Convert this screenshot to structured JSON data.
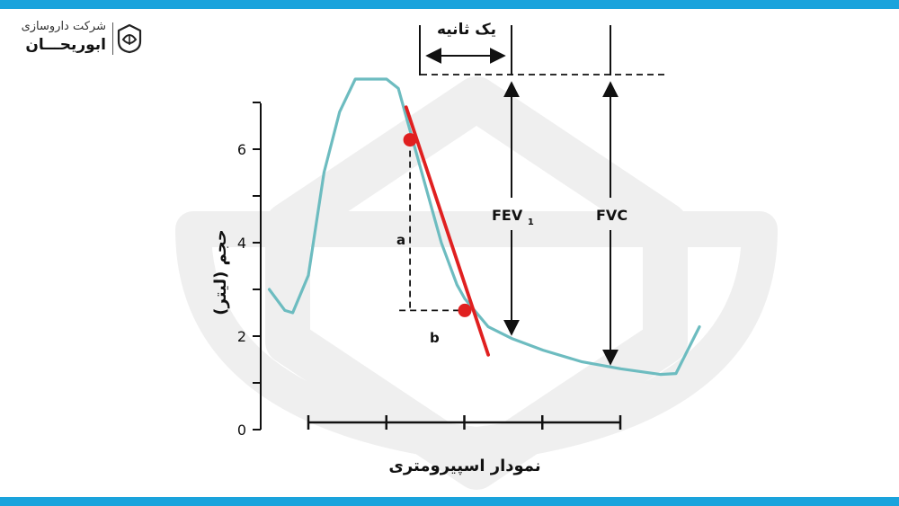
{
  "brand": {
    "line1": "شرکت داروسازی",
    "line2": "ابوریحـــان",
    "accent": "#1aa3dc"
  },
  "chart_data": {
    "type": "line",
    "title": "",
    "xlabel": "نمودار اسپیرومتری",
    "ylabel": "حجم (لیتر)",
    "yticks": [
      "0",
      "2",
      "4",
      "6"
    ],
    "ylim": [
      0,
      7
    ],
    "x_tick_count": 5,
    "series": [
      {
        "color": "#6dbcc0",
        "points": [
          [
            -0.5,
            3.0
          ],
          [
            -0.3,
            2.55
          ],
          [
            -0.2,
            2.5
          ],
          [
            0.0,
            3.3
          ],
          [
            0.2,
            5.5
          ],
          [
            0.4,
            6.8
          ],
          [
            0.6,
            7.5
          ],
          [
            0.8,
            7.5
          ],
          [
            1.0,
            7.5
          ],
          [
            1.15,
            7.3
          ],
          [
            1.3,
            6.4
          ],
          [
            1.5,
            5.2
          ],
          [
            1.7,
            4.0
          ],
          [
            1.9,
            3.1
          ],
          [
            2.0,
            2.8
          ],
          [
            2.3,
            2.2
          ],
          [
            2.6,
            1.95
          ],
          [
            3.0,
            1.7
          ],
          [
            3.5,
            1.45
          ],
          [
            4.0,
            1.3
          ],
          [
            4.5,
            1.18
          ],
          [
            4.7,
            1.2
          ],
          [
            5.0,
            2.2
          ]
        ]
      }
    ],
    "tangent": {
      "color": "#e02020",
      "from": [
        1.25,
        6.9
      ],
      "to": [
        2.3,
        1.6
      ]
    },
    "points": [
      [
        1.3,
        6.2
      ],
      [
        2.0,
        2.55
      ]
    ],
    "annotations": {
      "one_second": "یک ثانیه",
      "fev1": "FEV",
      "fev1_sub": "1",
      "fvc": "FVC",
      "a": "a",
      "b": "b"
    }
  }
}
